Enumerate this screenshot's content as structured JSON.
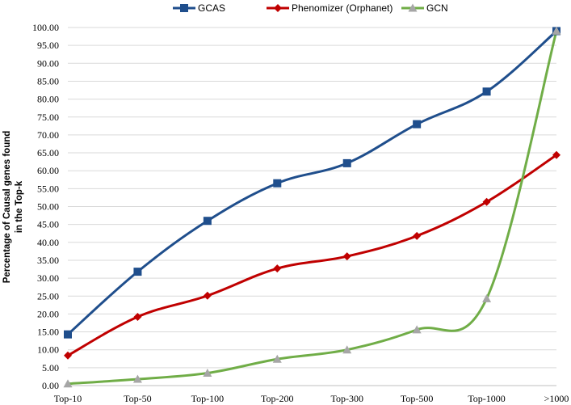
{
  "chart_data": {
    "type": "line",
    "categories": [
      "Top-10",
      "Top-50",
      "Top-100",
      "Top-200",
      "Top-300",
      "Top-500",
      "Top-1000",
      ">1000"
    ],
    "series": [
      {
        "name": "GCAS",
        "color": "#1f4e8c",
        "marker": "square",
        "values": [
          14.3,
          31.8,
          46.0,
          56.5,
          62.1,
          73.0,
          82.1,
          99.0
        ]
      },
      {
        "name": "Phenomizer (Orphanet)",
        "color": "#c00000",
        "marker": "diamond",
        "values": [
          8.4,
          19.2,
          25.1,
          32.7,
          36.1,
          41.8,
          51.3,
          64.4
        ]
      },
      {
        "name": "GCN",
        "color": "#70ad47",
        "marker": "triangle",
        "marker_color": "#a6a6a6",
        "values": [
          0.5,
          1.8,
          3.5,
          7.4,
          10.0,
          15.6,
          24.3,
          99.0
        ]
      }
    ],
    "y_ticks": [
      "0.00",
      "5.00",
      "10.00",
      "15.00",
      "20.00",
      "25.00",
      "30.00",
      "35.00",
      "40.00",
      "45.00",
      "50.00",
      "55.00",
      "60.00",
      "65.00",
      "70.00",
      "75.00",
      "80.00",
      "85.00",
      "90.00",
      "95.00",
      "100.00"
    ],
    "ylabel_line1": "Percentage of Causal genes found",
    "ylabel_line2": "in the Top-k",
    "ylim": [
      0,
      100
    ],
    "grid": "horizontal",
    "legend_position": "top"
  }
}
